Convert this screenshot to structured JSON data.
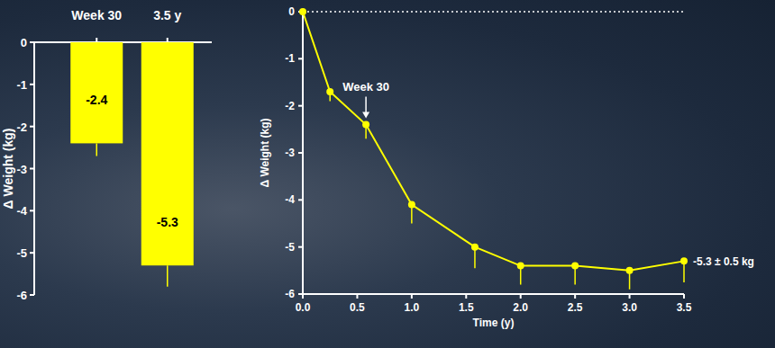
{
  "chart_data": [
    {
      "type": "bar",
      "y_label": "Δ Weight (kg)",
      "categories": [
        "Week 30",
        "3.5 y"
      ],
      "values": [
        -2.4,
        -5.3
      ],
      "errors": [
        0.3,
        0.5
      ],
      "color": "#ffff00",
      "ylim": [
        -6,
        0
      ],
      "yticks": [
        -6,
        -5,
        -4,
        -3,
        -2,
        -1,
        0
      ],
      "data_labels": true,
      "grid": false
    },
    {
      "type": "line",
      "x_label": "Time (y)",
      "y_label": "Δ Weight (kg)",
      "x": [
        0,
        0.25,
        0.58,
        1.0,
        1.58,
        2.0,
        2.5,
        3.0,
        3.5
      ],
      "values": [
        0,
        -1.7,
        -2.4,
        -4.1,
        -5.0,
        -5.4,
        -5.4,
        -5.5,
        -5.3
      ],
      "errors": [
        0,
        0.2,
        0.3,
        0.4,
        0.45,
        0.4,
        0.4,
        0.4,
        0.45
      ],
      "color": "#ffff00",
      "marker": "circle",
      "xlim": [
        0,
        3.5
      ],
      "xticks": [
        {
          "value": 0,
          "label": "0.0"
        },
        0.5,
        {
          "value": 1,
          "label": "1.0"
        },
        1.5,
        {
          "value": 2,
          "label": "2.0"
        },
        2.5,
        {
          "value": 3,
          "label": "3.0"
        },
        3.5
      ],
      "ylim": [
        -6,
        0
      ],
      "yticks": [
        -6,
        -5,
        -4,
        -3,
        -2,
        -1,
        0
      ],
      "grid": false,
      "annotations": [
        {
          "text": "Week 30",
          "x": 0.58,
          "y": -2.4
        },
        {
          "text": "-5.3 ± 0.5 kg",
          "x": 3.5,
          "y": -5.3
        }
      ]
    }
  ]
}
